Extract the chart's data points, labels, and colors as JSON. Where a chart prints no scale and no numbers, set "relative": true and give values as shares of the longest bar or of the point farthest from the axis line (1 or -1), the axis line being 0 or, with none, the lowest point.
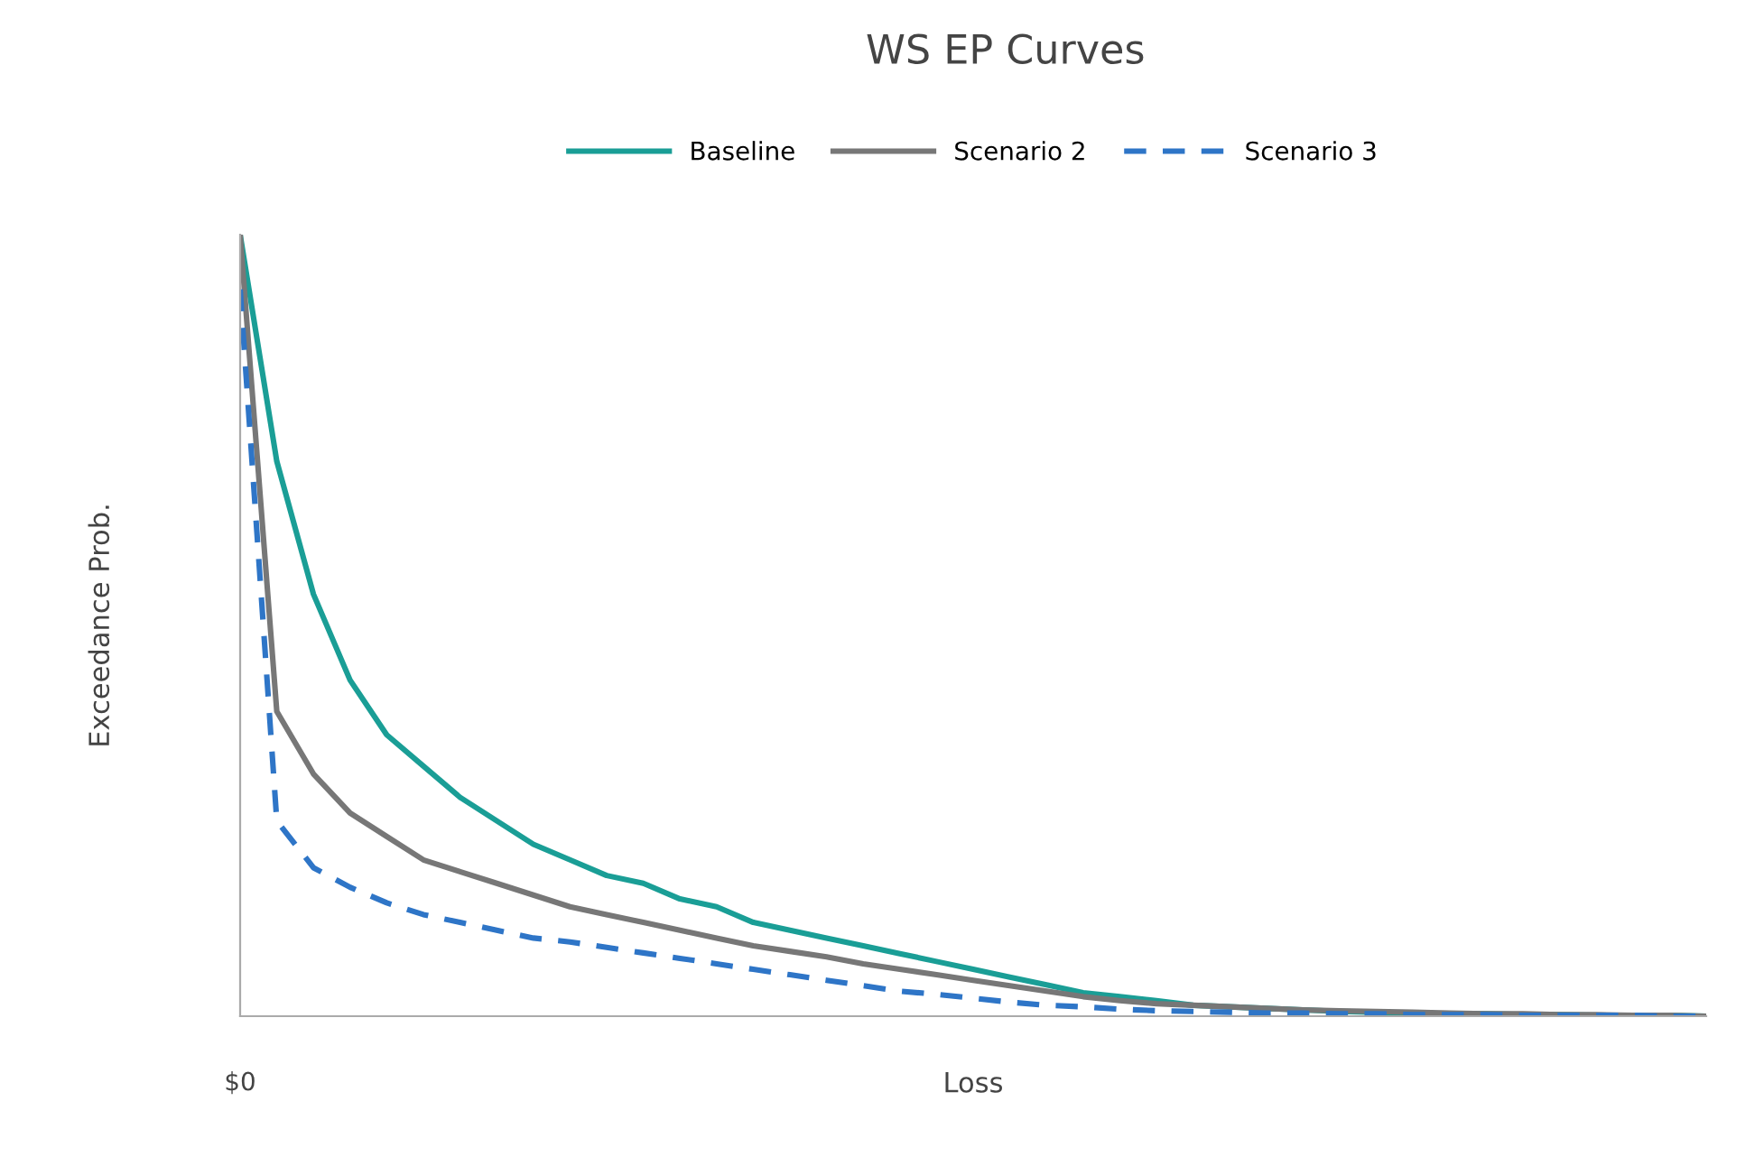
{
  "chart_data": {
    "type": "line",
    "title": "WS EP Curves",
    "xlabel": "Loss",
    "ylabel": "Exceedance Prob.",
    "relative": true,
    "legend": "top",
    "grid": false,
    "marker": "none",
    "annotations": [
      "$0"
    ],
    "categories": [
      null,
      null,
      null,
      null,
      null,
      null,
      null,
      null,
      null,
      null,
      null,
      null,
      null,
      null,
      null,
      null,
      null,
      null,
      null,
      null,
      null,
      null,
      null,
      null,
      null,
      null,
      null,
      null,
      null,
      null,
      null,
      null,
      null,
      null,
      null,
      null,
      null,
      null,
      null,
      null,
      null
    ],
    "series": [
      {
        "name": "Baseline",
        "color": "#1a9e96",
        "line_style": "solid",
        "values": [
          1.0,
          0.71,
          0.54,
          0.43,
          0.36,
          0.32,
          0.28,
          0.25,
          0.22,
          0.2,
          0.18,
          0.17,
          0.15,
          0.14,
          0.12,
          0.11,
          0.1,
          0.09,
          0.08,
          0.07,
          0.06,
          0.05,
          0.04,
          0.03,
          0.025,
          0.02,
          0.014,
          0.012,
          0.01,
          0.008,
          0.006,
          0.005,
          0.004,
          0.003,
          0.003,
          0.002,
          0.002,
          0.001,
          0.001,
          0.001,
          0
        ]
      },
      {
        "name": "Scenario 2",
        "color": "#777777",
        "line_style": "solid",
        "values": [
          1.0,
          0.39,
          0.31,
          0.26,
          0.23,
          0.2,
          0.185,
          0.17,
          0.155,
          0.14,
          0.13,
          0.12,
          0.11,
          0.1,
          0.09,
          0.083,
          0.076,
          0.067,
          0.06,
          0.053,
          0.046,
          0.039,
          0.032,
          0.025,
          0.02,
          0.016,
          0.014,
          0.012,
          0.01,
          0.008,
          0.007,
          0.006,
          0.005,
          0.004,
          0.003,
          0.003,
          0.002,
          0.002,
          0.001,
          0.001,
          0
        ]
      },
      {
        "name": "Scenario 3",
        "color": "#2e75c7",
        "line_style": "dashed",
        "values": [
          0.93,
          0.25,
          0.19,
          0.165,
          0.145,
          0.13,
          0.12,
          0.11,
          0.1,
          0.095,
          0.088,
          0.081,
          0.074,
          0.067,
          0.06,
          0.053,
          0.046,
          0.039,
          0.032,
          0.028,
          0.023,
          0.018,
          0.014,
          0.012,
          0.009,
          0.007,
          0.006,
          0.005,
          0.004,
          0.004,
          0.003,
          0.003,
          0.002,
          0.002,
          0.002,
          0.001,
          0.001,
          0.001,
          0.001,
          0,
          0
        ]
      }
    ]
  }
}
